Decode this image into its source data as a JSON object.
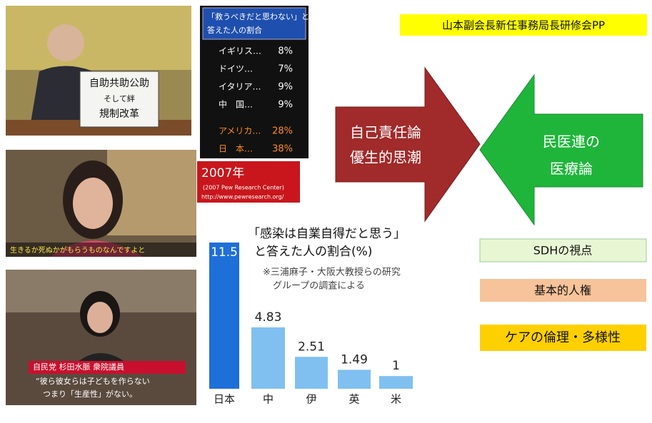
{
  "header": {
    "title": "山本副会長新任事務局長研修会PP"
  },
  "photos": [
    {
      "board": [
        "自助共助公助",
        "そして絆",
        "規制改革"
      ]
    },
    {
      "caption": "生きるか死ぬかがもらうものなんですよと"
    },
    {
      "caption": [
        "自民党 杉田水脈 衆院議員",
        "“彼ら彼女らは子どもを作らない",
        "つまり「生産性」がない。"
      ]
    }
  ],
  "survey": {
    "title": [
      "「救うべきだと思わない」と",
      "答えた人の割合"
    ],
    "rows": [
      [
        "イギリス…",
        "8%"
      ],
      [
        "ドイツ…",
        "7%"
      ],
      [
        "イタリア…",
        "9%"
      ],
      [
        "中　国…",
        "9%"
      ],
      [
        "アメリカ…",
        "28%"
      ],
      [
        "日　本…",
        "38%"
      ]
    ],
    "source": [
      "2007年",
      "(2007 Pew Research Center)",
      "http://www.pewresearch.org/"
    ]
  },
  "arrows": {
    "left": [
      "自己責任論",
      "優生的思潮"
    ],
    "right": [
      "民医連の",
      "医療論"
    ]
  },
  "boxes": [
    "SDHの視点",
    "基本的人権",
    "ケアの倫理・多様性"
  ],
  "chart_data": {
    "type": "bar",
    "title": [
      "「感染は自業自得だと思う」",
      "と答えた人の割合(%)"
    ],
    "note": [
      "※三浦麻子・大阪大教授らの研究",
      "グループの調査による"
    ],
    "categories": [
      "日本",
      "中",
      "伊",
      "英",
      "米"
    ],
    "values": [
      11.5,
      4.83,
      2.51,
      1.49,
      1
    ],
    "colors": [
      "#1f6fd8",
      "#80c0f0",
      "#80c0f0",
      "#80c0f0",
      "#80c0f0"
    ]
  }
}
